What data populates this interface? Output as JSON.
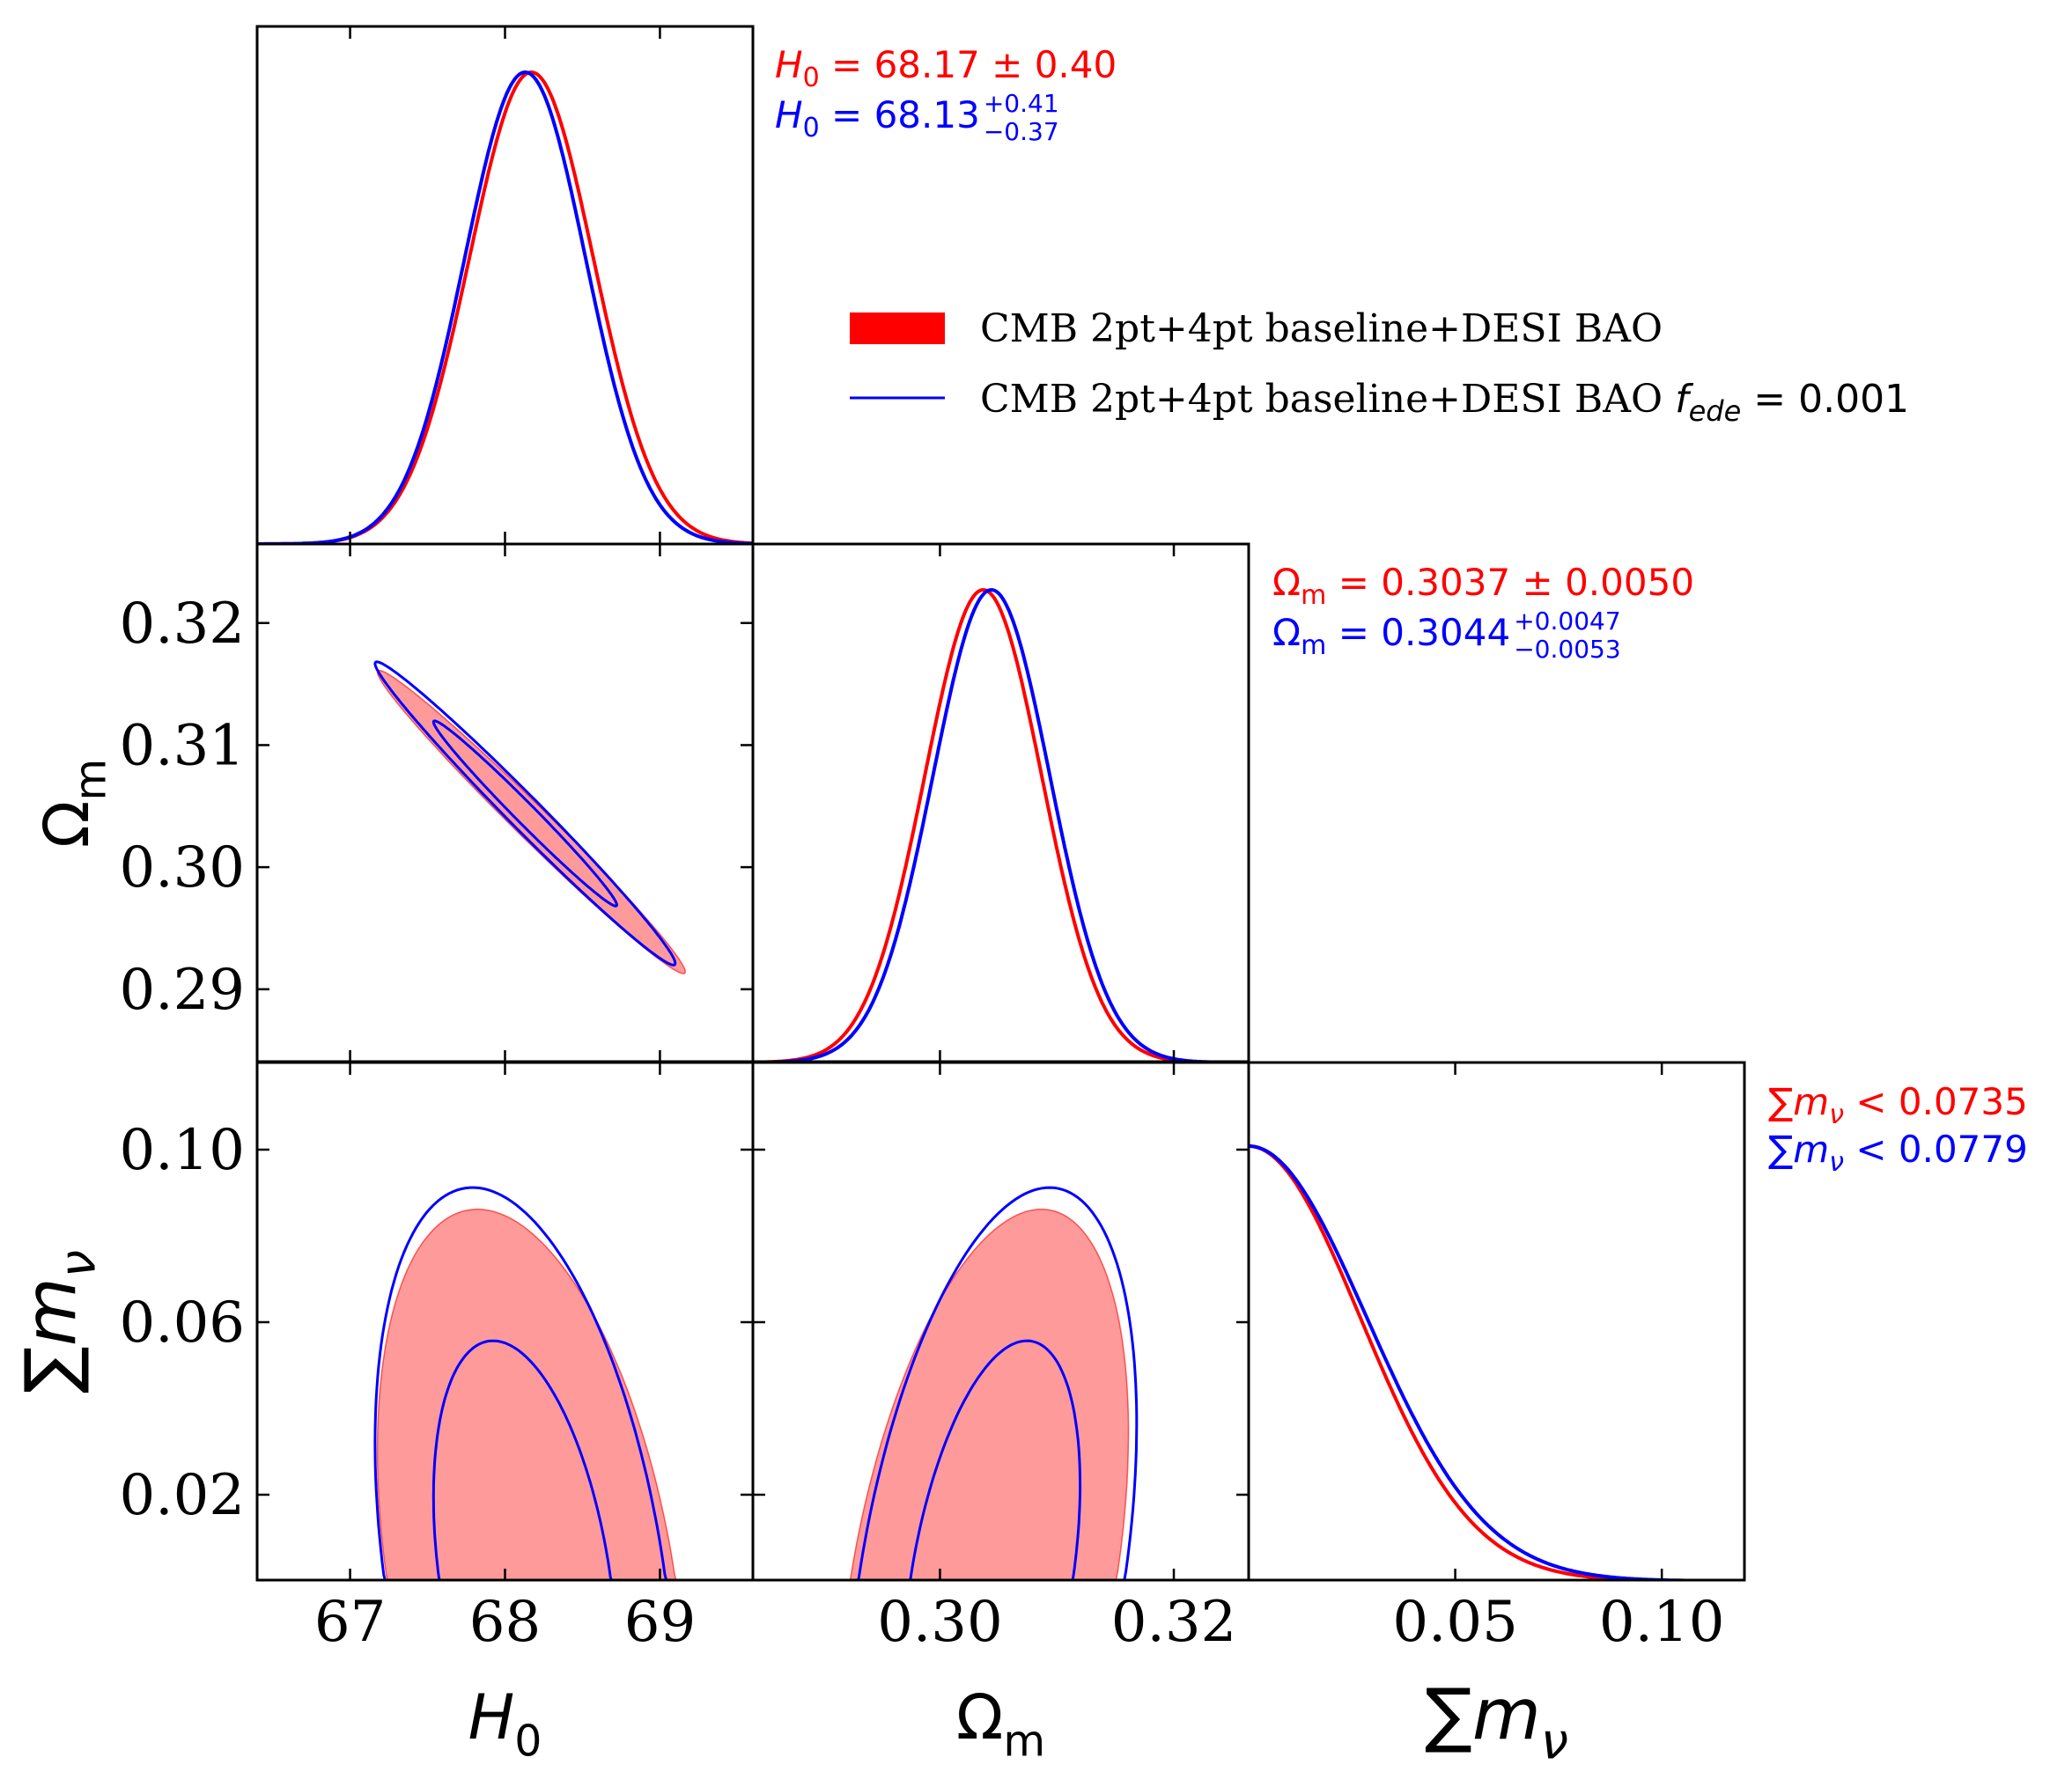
{
  "colors": {
    "red": "#ff0000",
    "red_light": "#ff9a9a",
    "blue": "#0000ff",
    "axis": "#000000",
    "background": "#ffffff"
  },
  "legend": {
    "placement": "upper-right",
    "entries": [
      {
        "label": "CMB 2pt+4pt baseline+DESI BAO",
        "suffix": "",
        "style": "filled",
        "color": "#ff0000"
      },
      {
        "label": "CMB 2pt+4pt baseline+DESI BAO ",
        "suffix_var": "f",
        "suffix_sub": "ede",
        "suffix_value": " = 0.001",
        "style": "line",
        "color": "#0000ff"
      }
    ]
  },
  "stats": {
    "H0": {
      "red": {
        "symbol": "H",
        "sub": "0",
        "text": " = 68.17 ± 0.40"
      },
      "blue": {
        "symbol": "H",
        "sub": "0",
        "text": " = 68.13",
        "sup": "+0.41",
        "sub2": "−0.37"
      }
    },
    "Om": {
      "red": {
        "symbol": "Ω",
        "sub": "m",
        "text": " = 0.3037 ± 0.0050"
      },
      "blue": {
        "symbol": "Ω",
        "sub": "m",
        "text": " = 0.3044",
        "sup": "+0.0047",
        "sub2": "−0.0053"
      }
    },
    "mnu": {
      "red": {
        "symbol": "∑m",
        "sub": "ν",
        "text": " < 0.0735"
      },
      "blue": {
        "symbol": "∑m",
        "sub": "ν",
        "text": " < 0.0779"
      }
    }
  },
  "axes_labels": {
    "H0": {
      "main": "H",
      "sub": "0"
    },
    "Om": {
      "main": "Ω",
      "sub": "m"
    },
    "mnu": {
      "main": "∑m",
      "sub": "ν"
    }
  },
  "chart_data": {
    "type": "triangle-plot",
    "parameters": [
      "H0",
      "Om",
      "mnu"
    ],
    "ranges": {
      "H0": [
        66.4,
        69.6
      ],
      "Om": [
        0.284,
        0.3264
      ],
      "mnu": [
        0.0,
        0.12
      ]
    },
    "ticks": {
      "H0": {
        "values": [
          67,
          68,
          69
        ],
        "labels": [
          "67",
          "68",
          "69"
        ]
      },
      "Om": {
        "values": [
          0.3,
          0.32
        ],
        "labels": [
          "0.30",
          "0.32"
        ]
      },
      "Om_y": {
        "values": [
          0.29,
          0.3,
          0.31,
          0.32
        ],
        "labels": [
          "0.29",
          "0.30",
          "0.31",
          "0.32"
        ]
      },
      "mnu": {
        "values": [
          0.05,
          0.1
        ],
        "labels": [
          "0.05",
          "0.10"
        ]
      },
      "mnu_y": {
        "values": [
          0.02,
          0.06,
          0.1
        ],
        "labels": [
          "0.02",
          "0.06",
          "0.10"
        ]
      }
    },
    "series": [
      {
        "name": "CMB 2pt+4pt baseline+DESI BAO",
        "color": "#ff0000",
        "H0": {
          "mean": 68.17,
          "sigma": 0.4
        },
        "Om": {
          "mean": 0.3037,
          "sigma": 0.005
        },
        "mnu": {
          "upper95": 0.0735,
          "scale": 0.0257
        },
        "corr_H0_Om": -0.988,
        "corr_H0_mnu": -0.35,
        "corr_Om_mnu": 0.4
      },
      {
        "name": "CMB 2pt+4pt baseline+DESI BAO f_ede = 0.001",
        "color": "#0000ff",
        "H0": {
          "mean": 68.13,
          "sigma": 0.39
        },
        "Om": {
          "mean": 0.3044,
          "sigma": 0.005
        },
        "mnu": {
          "upper95": 0.0779,
          "scale": 0.0272
        },
        "corr_H0_Om": -0.988,
        "corr_H0_mnu": -0.35,
        "corr_Om_mnu": 0.4
      }
    ],
    "grid": false
  }
}
